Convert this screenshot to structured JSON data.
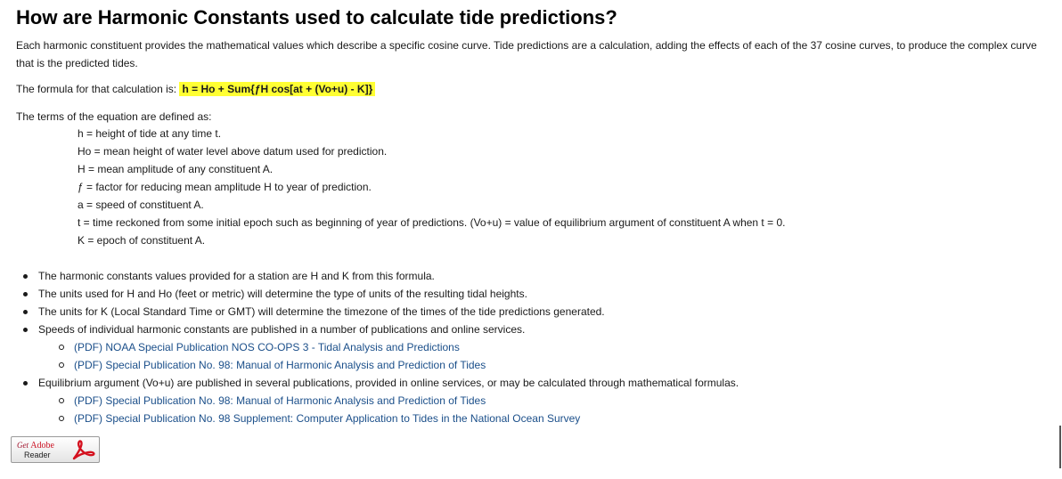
{
  "heading": "How are Harmonic Constants used to calculate tide predictions?",
  "intro": "Each harmonic constituent provides the mathematical values which describe a specific cosine curve. Tide predictions are a calculation, adding the effects of each of the 37 cosine curves, to produce the complex curve that is the predicted tides.",
  "formula_label": "The formula for that calculation is:",
  "formula": "h = Ho + Sum{ƒH cos[at + (Vo+u) - K]}",
  "highlight_color": "#ffff33",
  "link_color": "#1b4f8a",
  "terms_intro": "The terms of the equation are defined as:",
  "terms": [
    "h = height of tide at any time t.",
    "Ho = mean height of water level above datum used for prediction.",
    "H = mean amplitude of any constituent A.",
    "ƒ = factor for reducing mean amplitude H to year of prediction.",
    "a = speed of constituent A.",
    "t = time reckoned from some initial epoch such as beginning of year of predictions. (Vo+u) = value of equilibrium argument of constituent A when t = 0.",
    "K = epoch of constituent A."
  ],
  "bullets": [
    "The harmonic constants values provided for a station are H and K from this formula.",
    "The units used for H and Ho (feet or metric) will determine the type of units of the resulting tidal heights.",
    "The units for K (Local Standard Time or GMT) will determine the timezone of the times of the tide predictions generated.",
    "Speeds of individual harmonic constants are published in a number of publications and online services.",
    "Equilibrium argument (Vo+u) are published in several publications, provided in online services, or may be calculated through mathematical formulas."
  ],
  "links_speeds": [
    "(PDF) NOAA Special Publication NOS CO-OPS 3 - Tidal Analysis and Predictions",
    "(PDF) Special Publication No. 98: Manual of Harmonic Analysis and Prediction of Tides"
  ],
  "links_equilibrium": [
    "(PDF) Special Publication No. 98: Manual of Harmonic Analysis and Prediction of Tides",
    "(PDF) Special Publication No. 98 Supplement: Computer Application to Tides in the National Ocean Survey"
  ],
  "badge": {
    "get": "Get",
    "adobe": "Adobe",
    "reader": "Reader",
    "icon": "adobe-reader-icon"
  }
}
